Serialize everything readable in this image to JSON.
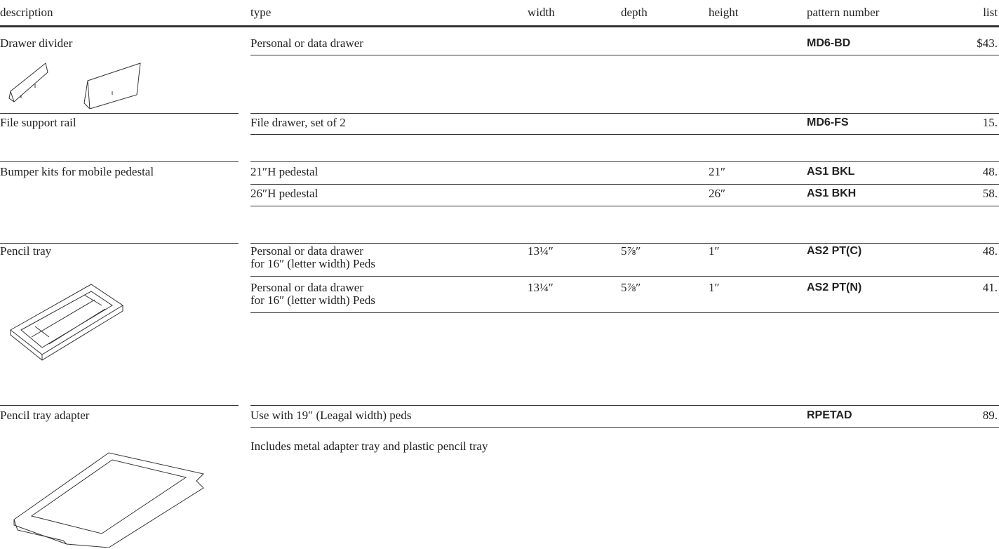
{
  "header": {
    "columns": [
      "description",
      "type",
      "width",
      "depth",
      "height",
      "pattern number",
      "list"
    ]
  },
  "groups": [
    {
      "description": "Drawer divider",
      "rows": [
        {
          "type": [
            "Personal or data drawer"
          ],
          "pattern": "MD6-BD",
          "list": "$43."
        }
      ]
    },
    {
      "description": "File support rail",
      "rows": [
        {
          "type": [
            "File drawer, set of 2"
          ],
          "pattern": "MD6-FS",
          "list": "15."
        }
      ]
    },
    {
      "description": "Bumper kits for mobile pedestal",
      "rows": [
        {
          "type": [
            "21″H pedestal"
          ],
          "height": "21″",
          "pattern": "AS1 BKL",
          "list": "48."
        },
        {
          "type": [
            "26″H pedestal"
          ],
          "height": "26″",
          "pattern": "AS1 BKH",
          "list": "58."
        }
      ]
    },
    {
      "description": "Pencil tray",
      "rows": [
        {
          "type": [
            "Personal or data drawer",
            "for 16″ (letter width) Peds"
          ],
          "width": "13¼″",
          "depth": "5⅞″",
          "height": "1″",
          "pattern": "AS2 PT(C)",
          "list": "48."
        },
        {
          "type": [
            "Personal or data drawer",
            "for 16″ (letter width) Peds"
          ],
          "width": "13¼″",
          "depth": "5⅞″",
          "height": "1″",
          "pattern": "AS2 PT(N)",
          "list": "41."
        }
      ]
    },
    {
      "description": "Pencil tray adapter",
      "rows": [
        {
          "type": [
            "Use with 19″ (Leagal width) peds"
          ],
          "pattern": "RPETAD",
          "list": "89."
        }
      ],
      "note": "Includes metal adapter tray and plastic pencil tray"
    }
  ]
}
